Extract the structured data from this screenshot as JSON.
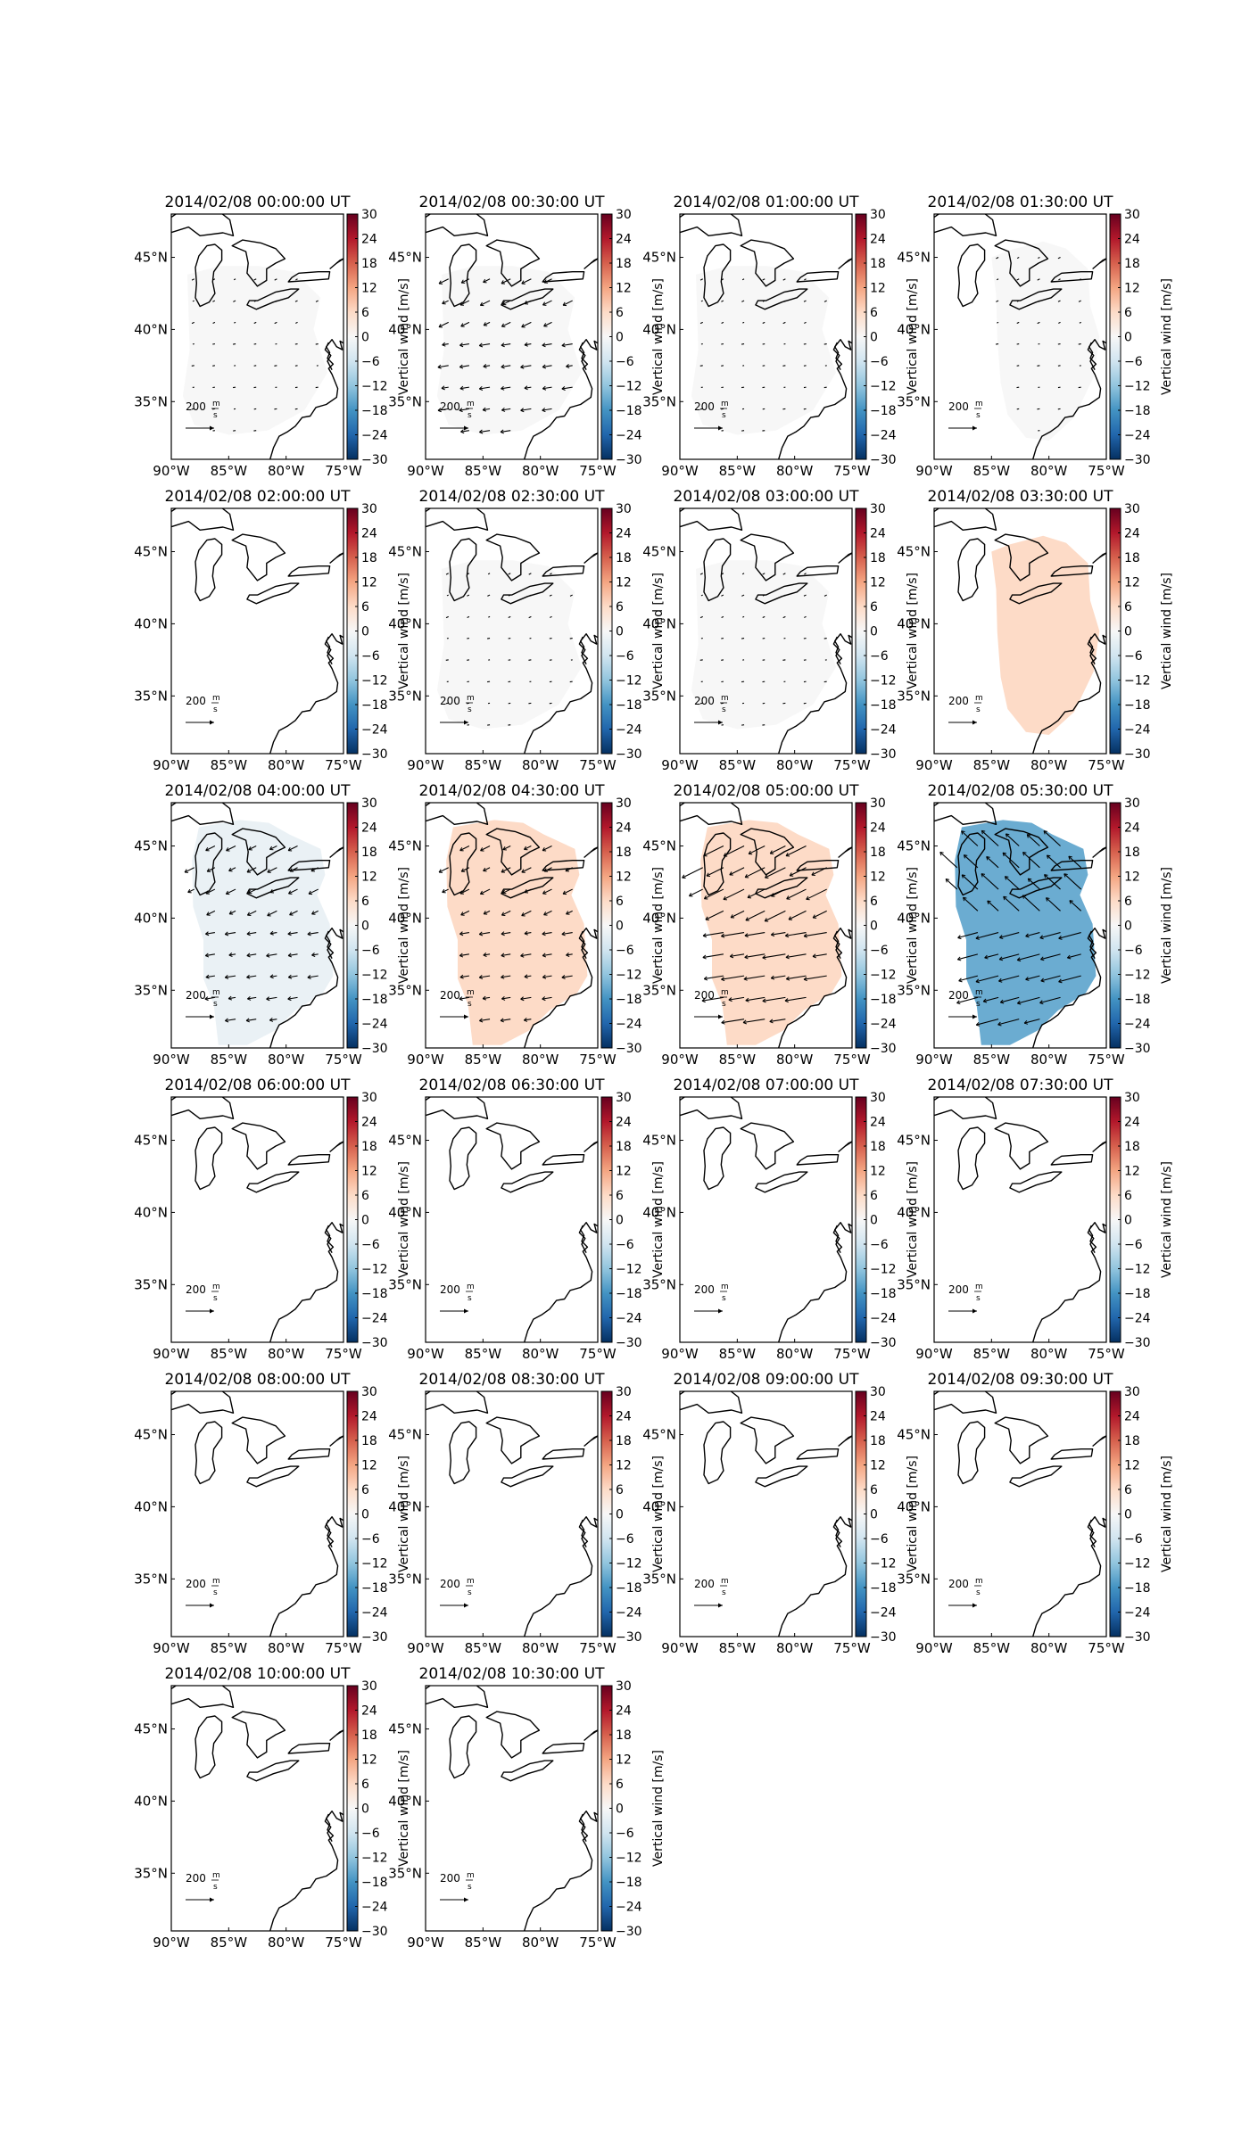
{
  "figure": {
    "colorbar": {
      "label": "Vertical wind [m/s]",
      "ticks": [
        30,
        24,
        18,
        12,
        6,
        0,
        -6,
        -12,
        -18,
        -24,
        -30
      ],
      "range": [
        -30,
        30
      ],
      "colormap": "RdBu_r"
    },
    "map": {
      "lon_ticks": [
        "90°W",
        "85°W",
        "80°W",
        "75°W"
      ],
      "lat_ticks": [
        "45°N",
        "40°N",
        "35°N"
      ],
      "lon_range": [
        -90,
        -75
      ],
      "lat_range": [
        31,
        48
      ],
      "coastline_color": "#000000"
    },
    "reference_arrow": {
      "value": "200",
      "unit_numerator": "m",
      "unit_denominator": "s"
    }
  },
  "chart_data": {
    "type": "heatmap",
    "description_units": "vertical wind in m/s, with horizontal wind vectors",
    "panels": [
      {
        "title": "2014/02/08 00:00:00 UT",
        "vertical_wind": 0,
        "coverage": "partial",
        "vectors": "weak"
      },
      {
        "title": "2014/02/08 00:30:00 UT",
        "vertical_wind": 0,
        "coverage": "partial",
        "vectors": "moderate"
      },
      {
        "title": "2014/02/08 01:00:00 UT",
        "vertical_wind": 0,
        "coverage": "partial",
        "vectors": "weak"
      },
      {
        "title": "2014/02/08 01:30:00 UT",
        "vertical_wind": 0,
        "coverage": "partial-east",
        "vectors": "weak"
      },
      {
        "title": "2014/02/08 02:00:00 UT",
        "vertical_wind": null,
        "coverage": "none",
        "vectors": "none"
      },
      {
        "title": "2014/02/08 02:30:00 UT",
        "vertical_wind": 0,
        "coverage": "partial",
        "vectors": "weak"
      },
      {
        "title": "2014/02/08 03:00:00 UT",
        "vertical_wind": 0,
        "coverage": "partial",
        "vectors": "weak"
      },
      {
        "title": "2014/02/08 03:30:00 UT",
        "vertical_wind": 6,
        "coverage": "partial-east",
        "vectors": "none"
      },
      {
        "title": "2014/02/08 04:00:00 UT",
        "vertical_wind": -2,
        "coverage": "full",
        "vectors": "moderate"
      },
      {
        "title": "2014/02/08 04:30:00 UT",
        "vertical_wind": 6,
        "coverage": "full",
        "vectors": "moderate"
      },
      {
        "title": "2014/02/08 05:00:00 UT",
        "vertical_wind": 6,
        "coverage": "full",
        "vectors": "strong"
      },
      {
        "title": "2014/02/08 05:30:00 UT",
        "vertical_wind": -15,
        "coverage": "full",
        "vectors": "strong"
      },
      {
        "title": "2014/02/08 06:00:00 UT",
        "vertical_wind": null,
        "coverage": "none",
        "vectors": "none"
      },
      {
        "title": "2014/02/08 06:30:00 UT",
        "vertical_wind": null,
        "coverage": "none",
        "vectors": "none"
      },
      {
        "title": "2014/02/08 07:00:00 UT",
        "vertical_wind": null,
        "coverage": "none",
        "vectors": "none"
      },
      {
        "title": "2014/02/08 07:30:00 UT",
        "vertical_wind": null,
        "coverage": "none",
        "vectors": "none"
      },
      {
        "title": "2014/02/08 08:00:00 UT",
        "vertical_wind": null,
        "coverage": "none",
        "vectors": "none"
      },
      {
        "title": "2014/02/08 08:30:00 UT",
        "vertical_wind": null,
        "coverage": "none",
        "vectors": "none"
      },
      {
        "title": "2014/02/08 09:00:00 UT",
        "vertical_wind": null,
        "coverage": "none",
        "vectors": "none"
      },
      {
        "title": "2014/02/08 09:30:00 UT",
        "vertical_wind": null,
        "coverage": "none",
        "vectors": "none"
      },
      {
        "title": "2014/02/08 10:00:00 UT",
        "vertical_wind": null,
        "coverage": "none",
        "vectors": "none"
      },
      {
        "title": "2014/02/08 10:30:00 UT",
        "vertical_wind": null,
        "coverage": "none",
        "vectors": "none"
      }
    ]
  }
}
